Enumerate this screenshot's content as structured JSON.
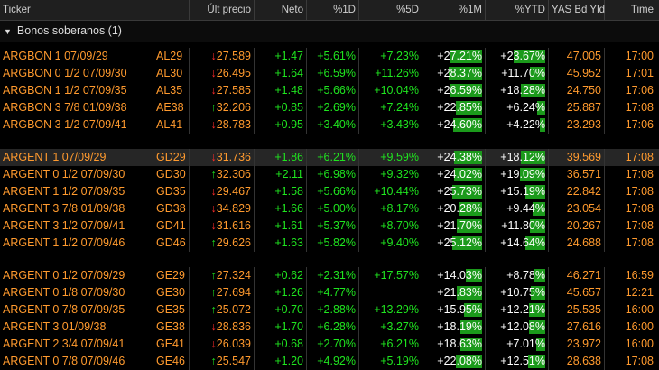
{
  "header": [
    "Ticker",
    "Últ precio",
    "Neto",
    "%1D",
    "%5D",
    "%1M",
    "%YTD",
    "YAS Bd Yld",
    "Time"
  ],
  "section": {
    "label": "Bonos soberanos (1)"
  },
  "groups": [
    [
      {
        "name": "ARGBON 1 07/09/29",
        "tick": "AL29",
        "dir": "down",
        "px": "27.589",
        "neto": "+1.47",
        "d1": "+5.61%",
        "d5": "+7.23%",
        "m1": "+27.21%",
        "m1_fill": 0.55,
        "ytd": "+23.67%",
        "ytd_fill": 0.55,
        "yld": "47.005",
        "time": "17:00"
      },
      {
        "name": "ARGBON 0 1/2 07/09/30",
        "tick": "AL30",
        "dir": "down",
        "px": "26.495",
        "neto": "+1.64",
        "d1": "+6.59%",
        "d5": "+11.26%",
        "m1": "+28.37%",
        "m1_fill": 0.58,
        "ytd": "+11.70%",
        "ytd_fill": 0.27,
        "yld": "45.952",
        "time": "17:01"
      },
      {
        "name": "ARGBON 1 1/2 07/09/35",
        "tick": "AL35",
        "dir": "down",
        "px": "27.585",
        "neto": "+1.48",
        "d1": "+5.66%",
        "d5": "+10.04%",
        "m1": "+26.59%",
        "m1_fill": 0.54,
        "ytd": "+18.28%",
        "ytd_fill": 0.42,
        "yld": "24.750",
        "time": "17:06"
      },
      {
        "name": "ARGBON 3 7/8 01/09/38",
        "tick": "AE38",
        "dir": "up",
        "px": "32.206",
        "neto": "+0.85",
        "d1": "+2.69%",
        "d5": "+7.24%",
        "m1": "+22.85%",
        "m1_fill": 0.46,
        "ytd": "+6.24%",
        "ytd_fill": 0.14,
        "yld": "25.887",
        "time": "17:08"
      },
      {
        "name": "ARGBON 3 1/2 07/09/41",
        "tick": "AL41",
        "dir": "down",
        "px": "28.783",
        "neto": "+0.95",
        "d1": "+3.40%",
        "d5": "+3.43%",
        "m1": "+24.60%",
        "m1_fill": 0.5,
        "ytd": "+4.22%",
        "ytd_fill": 0.1,
        "yld": "23.293",
        "time": "17:06"
      }
    ],
    [
      {
        "name": "ARGENT 1 07/09/29",
        "tick": "GD29",
        "dir": "down",
        "px": "31.736",
        "neto": "+1.86",
        "d1": "+6.21%",
        "d5": "+9.59%",
        "m1": "+24.38%",
        "m1_fill": 0.49,
        "ytd": "+18.12%",
        "ytd_fill": 0.42,
        "yld": "39.569",
        "time": "17:08",
        "sel": true
      },
      {
        "name": "ARGENT 0 1/2 07/09/30",
        "tick": "GD30",
        "dir": "up",
        "px": "32.306",
        "neto": "+2.11",
        "d1": "+6.98%",
        "d5": "+9.32%",
        "m1": "+24.02%",
        "m1_fill": 0.48,
        "ytd": "+19.09%",
        "ytd_fill": 0.44,
        "yld": "36.571",
        "time": "17:08"
      },
      {
        "name": "ARGENT 1 1/2 07/09/35",
        "tick": "GD35",
        "dir": "down",
        "px": "29.467",
        "neto": "+1.58",
        "d1": "+5.66%",
        "d5": "+10.44%",
        "m1": "+25.73%",
        "m1_fill": 0.52,
        "ytd": "+15.19%",
        "ytd_fill": 0.35,
        "yld": "22.842",
        "time": "17:08"
      },
      {
        "name": "ARGENT 3 7/8 01/09/38",
        "tick": "GD38",
        "dir": "down",
        "px": "34.829",
        "neto": "+1.66",
        "d1": "+5.00%",
        "d5": "+8.17%",
        "m1": "+20.28%",
        "m1_fill": 0.41,
        "ytd": "+9.44%",
        "ytd_fill": 0.22,
        "yld": "23.054",
        "time": "17:08"
      },
      {
        "name": "ARGENT 3 1/2 07/09/41",
        "tick": "GD41",
        "dir": "down",
        "px": "31.616",
        "neto": "+1.61",
        "d1": "+5.37%",
        "d5": "+8.70%",
        "m1": "+21.70%",
        "m1_fill": 0.44,
        "ytd": "+11.80%",
        "ytd_fill": 0.27,
        "yld": "20.267",
        "time": "17:08"
      },
      {
        "name": "ARGENT 1 1/2 07/09/46",
        "tick": "GD46",
        "dir": "up",
        "px": "29.626",
        "neto": "+1.63",
        "d1": "+5.82%",
        "d5": "+9.40%",
        "m1": "+25.12%",
        "m1_fill": 0.51,
        "ytd": "+14.64%",
        "ytd_fill": 0.34,
        "yld": "24.688",
        "time": "17:08"
      }
    ],
    [
      {
        "name": "ARGENT 0 1/2 07/09/29",
        "tick": "GE29",
        "dir": "up",
        "px": "27.324",
        "neto": "+0.62",
        "d1": "+2.31%",
        "d5": "+17.57%",
        "m1": "+14.03%",
        "m1_fill": 0.28,
        "ytd": "+8.78%",
        "ytd_fill": 0.2,
        "yld": "46.271",
        "time": "16:59"
      },
      {
        "name": "ARGENT 0 1/8 07/09/30",
        "tick": "GE30",
        "dir": "up",
        "px": "27.694",
        "neto": "+1.26",
        "d1": "+4.77%",
        "d5": "",
        "m1": "+21.83%",
        "m1_fill": 0.44,
        "ytd": "+10.75%",
        "ytd_fill": 0.25,
        "yld": "45.657",
        "time": "12:21"
      },
      {
        "name": "ARGENT 0 7/8 07/09/35",
        "tick": "GE35",
        "dir": "up",
        "px": "25.072",
        "neto": "+0.70",
        "d1": "+2.88%",
        "d5": "+13.29%",
        "m1": "+15.95%",
        "m1_fill": 0.32,
        "ytd": "+12.21%",
        "ytd_fill": 0.28,
        "yld": "25.535",
        "time": "16:00"
      },
      {
        "name": "ARGENT 3 01/09/38",
        "tick": "GE38",
        "dir": "down",
        "px": "28.836",
        "neto": "+1.70",
        "d1": "+6.28%",
        "d5": "+3.27%",
        "m1": "+18.19%",
        "m1_fill": 0.37,
        "ytd": "+12.08%",
        "ytd_fill": 0.28,
        "yld": "27.616",
        "time": "16:00"
      },
      {
        "name": "ARGENT 2 3/4 07/09/41",
        "tick": "GE41",
        "dir": "down",
        "px": "26.039",
        "neto": "+0.68",
        "d1": "+2.70%",
        "d5": "+6.21%",
        "m1": "+18.63%",
        "m1_fill": 0.38,
        "ytd": "+7.01%",
        "ytd_fill": 0.16,
        "yld": "23.972",
        "time": "16:00"
      },
      {
        "name": "ARGENT 0 7/8 07/09/46",
        "tick": "GE46",
        "dir": "up",
        "px": "25.547",
        "neto": "+1.20",
        "d1": "+4.92%",
        "d5": "+5.19%",
        "m1": "+22.08%",
        "m1_fill": 0.45,
        "ytd": "+12.51%",
        "ytd_fill": 0.29,
        "yld": "28.638",
        "time": "17:08"
      }
    ]
  ]
}
